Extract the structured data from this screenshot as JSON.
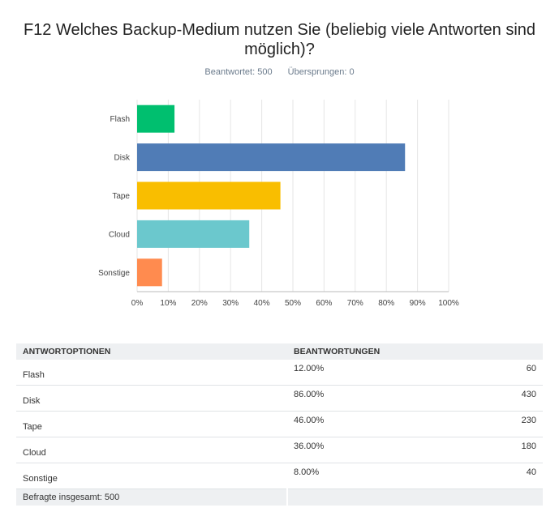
{
  "title": "F12 Welches Backup-Medium nutzen Sie (beliebig viele Antworten sind möglich)?",
  "answered": "Beantwortet: 500",
  "skipped": "Übersprungen: 0",
  "chart_data": {
    "type": "bar",
    "orientation": "horizontal",
    "categories": [
      "Flash",
      "Disk",
      "Tape",
      "Cloud",
      "Sonstige"
    ],
    "values": [
      12,
      86,
      46,
      36,
      8
    ],
    "colors": [
      "#00bf6f",
      "#507cb6",
      "#f9be00",
      "#6bc8cd",
      "#ff8b4f"
    ],
    "xlim": [
      0,
      100
    ],
    "ticks": [
      "0%",
      "10%",
      "20%",
      "30%",
      "40%",
      "50%",
      "60%",
      "70%",
      "80%",
      "90%",
      "100%"
    ],
    "grid": true
  },
  "table": {
    "headers": [
      "ANTWORTOPTIONEN",
      "BEANTWORTUNGEN"
    ],
    "rows": [
      {
        "option": "Flash",
        "percent": "12.00%",
        "count": "60"
      },
      {
        "option": "Disk",
        "percent": "86.00%",
        "count": "430"
      },
      {
        "option": "Tape",
        "percent": "46.00%",
        "count": "230"
      },
      {
        "option": "Cloud",
        "percent": "36.00%",
        "count": "180"
      },
      {
        "option": "Sonstige",
        "percent": "8.00%",
        "count": "40"
      }
    ],
    "total": "Befragte insgesamt: 500"
  }
}
